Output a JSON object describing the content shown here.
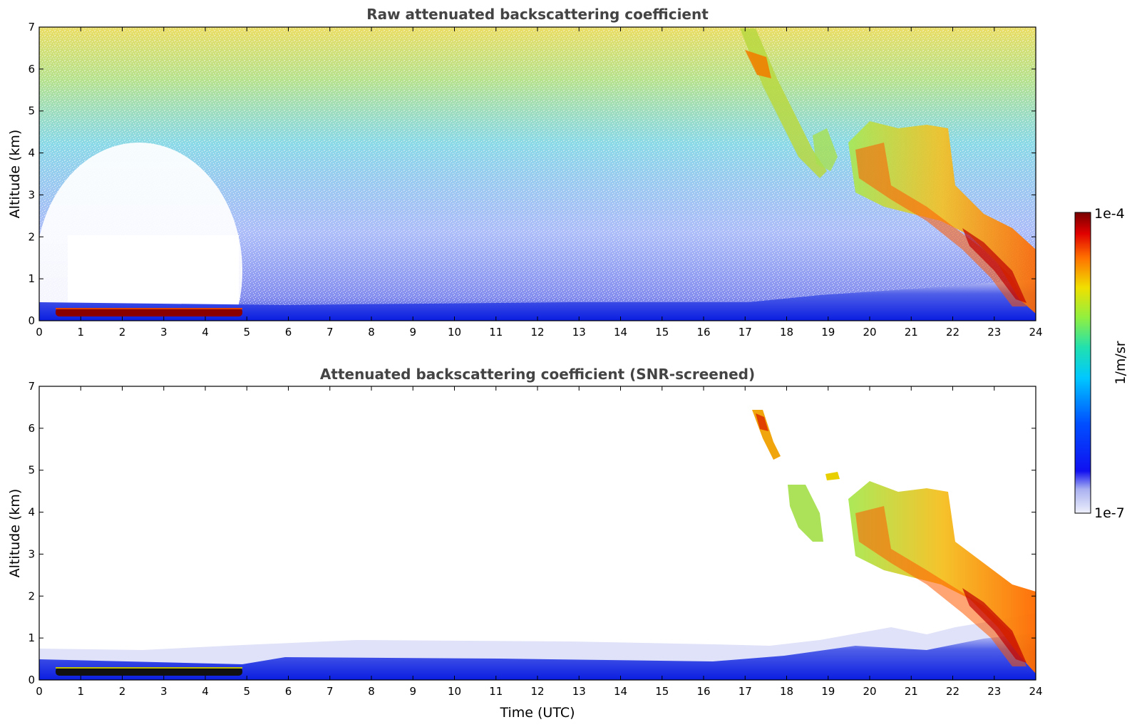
{
  "chart_data": [
    {
      "type": "heatmap",
      "title": "Raw attenuated backscattering coefficient",
      "xlabel": "",
      "ylabel": "Altitude (km)",
      "xlim": [
        0,
        24
      ],
      "ylim": [
        0,
        7
      ],
      "x_ticks": [
        "0",
        "1",
        "2",
        "3",
        "4",
        "5",
        "6",
        "7",
        "8",
        "9",
        "10",
        "11",
        "12",
        "13",
        "14",
        "15",
        "16",
        "17",
        "18",
        "19",
        "20",
        "21",
        "22",
        "23",
        "24"
      ],
      "y_ticks": [
        "0",
        "1",
        "2",
        "3",
        "4",
        "5",
        "6",
        "7"
      ],
      "grid": false,
      "features": [
        {
          "name": "boundary layer",
          "time_utc": [
            0,
            24
          ],
          "altitude_km": [
            0,
            0.4
          ],
          "level": "~1e-6"
        },
        {
          "name": "fog/low cloud",
          "time_utc": [
            0.4,
            4.8
          ],
          "altitude_km": [
            0.15,
            0.3
          ],
          "level": "~1e-4"
        },
        {
          "name": "cirrus descending",
          "time_utc": [
            16.9,
            18.3
          ],
          "altitude_km": [
            3.6,
            7.0
          ],
          "level": "~1e-5"
        },
        {
          "name": "cloud deck",
          "time_utc": [
            19.5,
            24
          ],
          "altitude_km": [
            0.3,
            4.4
          ],
          "level": "~3e-5"
        }
      ]
    },
    {
      "type": "heatmap",
      "title": "Attenuated backscattering coefficient (SNR-screened)",
      "xlabel": "Time (UTC)",
      "ylabel": "Altitude (km)",
      "xlim": [
        0,
        24
      ],
      "ylim": [
        0,
        7
      ],
      "x_ticks": [
        "0",
        "1",
        "2",
        "3",
        "4",
        "5",
        "6",
        "7",
        "8",
        "9",
        "10",
        "11",
        "12",
        "13",
        "14",
        "15",
        "16",
        "17",
        "18",
        "19",
        "20",
        "21",
        "22",
        "23",
        "24"
      ],
      "y_ticks": [
        "0",
        "1",
        "2",
        "3",
        "4",
        "5",
        "6",
        "7"
      ],
      "grid": false
    }
  ],
  "colorbar": {
    "label": "1/m/sr",
    "max_label": "1e-4",
    "min_label": "1e-7",
    "scale": "log",
    "colormap": "jet"
  }
}
